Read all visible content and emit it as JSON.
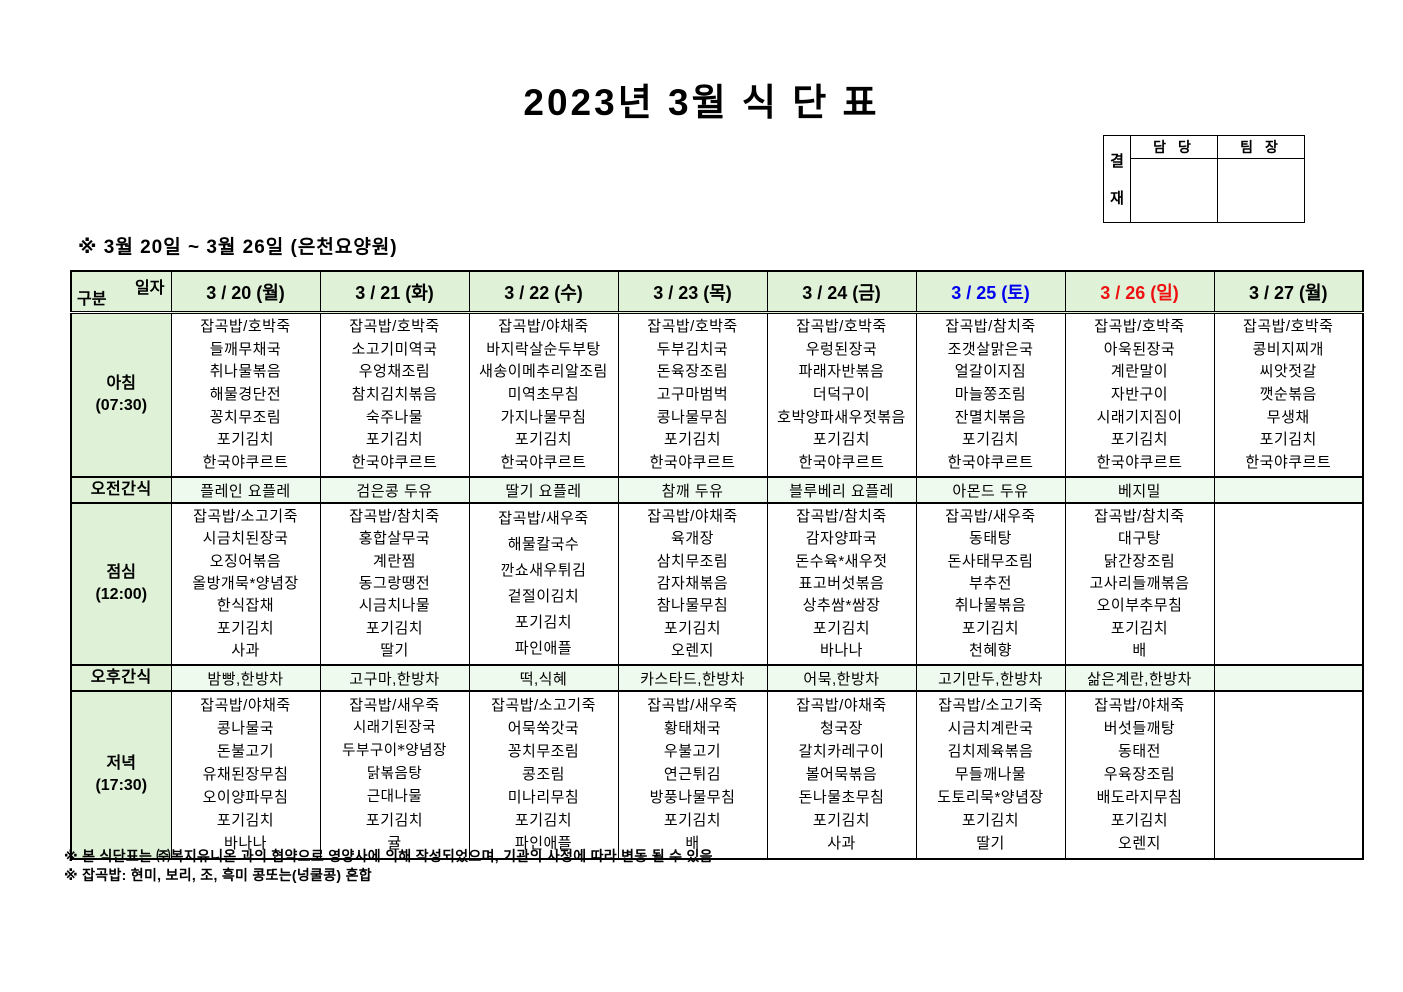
{
  "page": {
    "title": "2023년 3월 식 단 표",
    "period_note": "※  3월 20일  ~  3월 26일  (은천요양원)",
    "footnotes": [
      "※ 본 식단표는 ㈜복지유니온 과의 협약으로 영양사에 의해 작성되었으며, 기관의 사정에 따라 변동 될 수 있음",
      "※ 잡곡밥: 현미, 보리, 조, 흑미 콩또는(넝쿨콩) 혼합"
    ]
  },
  "approval": {
    "title_chars": [
      "결",
      "재"
    ],
    "columns": [
      "담 당",
      "팀 장"
    ]
  },
  "colors": {
    "header_green": "#DFF2D8",
    "snack_green": "#EFFAEF",
    "saturday_blue": "#0000EE",
    "sunday_red": "#EE1111"
  },
  "table": {
    "corner": {
      "top_right": "일자",
      "bottom_left": "구분"
    },
    "row_labels": {
      "breakfast": "아침\n(07:30)",
      "am_snack": "오전간식",
      "lunch": "점심\n(12:00)",
      "pm_snack": "오후간식",
      "dinner": "저녁\n(17:30)"
    },
    "days": [
      {
        "date": "3 / 20 (월)",
        "style": "normal",
        "breakfast": [
          "잡곡밥/호박죽",
          "들깨무채국",
          "취나물볶음",
          "해물경단전",
          "꽁치무조림",
          "포기김치",
          "한국야쿠르트"
        ],
        "am_snack": "플레인 요플레",
        "lunch": [
          "잡곡밥/소고기죽",
          "시금치된장국",
          "오징어볶음",
          "올방개묵*양념장",
          "한식잡채",
          "포기김치",
          "사과"
        ],
        "pm_snack": "밤빵,한방차",
        "dinner": [
          "잡곡밥/야채죽",
          "콩나물국",
          "돈불고기",
          "유채된장무침",
          "오이양파무침",
          "포기김치",
          "바나나"
        ],
        "dinner_alt_font": []
      },
      {
        "date": "3 / 21 (화)",
        "style": "normal",
        "breakfast": [
          "잡곡밥/호박죽",
          "소고기미역국",
          "우엉채조림",
          "참치김치볶음",
          "숙주나물",
          "포기김치",
          "한국야쿠르트"
        ],
        "am_snack": "검은콩 두유",
        "lunch": [
          "잡곡밥/참치죽",
          "홍합살무국",
          "계란찜",
          "동그랑땡전",
          "시금치나물",
          "포기김치",
          "딸기"
        ],
        "pm_snack": "고구마,한방차",
        "dinner": [
          "잡곡밥/새우죽",
          "시래기된장국",
          "두부구이*양념장",
          "닭볶음탕",
          "근대나물",
          "포기김치",
          "귤"
        ],
        "dinner_alt_font": [
          1,
          2,
          3,
          4
        ]
      },
      {
        "date": "3 / 22 (수)",
        "style": "normal",
        "breakfast": [
          "잡곡밥/야채죽",
          "바지락살순두부탕",
          "새송이메추리알조림",
          "미역초무침",
          "가지나물무침",
          "포기김치",
          "한국야쿠르트"
        ],
        "am_snack": "딸기 요플레",
        "lunch": [
          "잡곡밥/새우죽",
          "해물칼국수",
          "깐쇼새우튀김",
          "겉절이김치",
          "포기김치",
          "파인애플"
        ],
        "pm_snack": "떡,식혜",
        "dinner": [
          "잡곡밥/소고기죽",
          "어묵쑥갓국",
          "꽁치무조림",
          "콩조림",
          "미나리무침",
          "포기김치",
          "파인애플"
        ],
        "dinner_alt_font": []
      },
      {
        "date": "3 / 23 (목)",
        "style": "normal",
        "breakfast": [
          "잡곡밥/호박죽",
          "두부김치국",
          "돈육장조림",
          "고구마범벅",
          "콩나물무침",
          "포기김치",
          "한국야쿠르트"
        ],
        "am_snack": "참깨 두유",
        "lunch": [
          "잡곡밥/야채죽",
          "육개장",
          "삼치무조림",
          "감자채볶음",
          "참나물무침",
          "포기김치",
          "오렌지"
        ],
        "pm_snack": "카스타드,한방차",
        "dinner": [
          "잡곡밥/새우죽",
          "황태채국",
          "우불고기",
          "연근튀김",
          "방풍나물무침",
          "포기김치",
          "배"
        ],
        "dinner_alt_font": []
      },
      {
        "date": "3 / 24 (금)",
        "style": "normal",
        "breakfast": [
          "잡곡밥/호박죽",
          "우렁된장국",
          "파래자반볶음",
          "더덕구이",
          "호박양파새우젓볶음",
          "포기김치",
          "한국야쿠르트"
        ],
        "am_snack": "블루베리 요플레",
        "lunch": [
          "잡곡밥/참치죽",
          "감자양파국",
          "돈수육*새우젓",
          "표고버섯볶음",
          "상추쌈*쌈장",
          "포기김치",
          "바나나"
        ],
        "pm_snack": "어묵,한방차",
        "dinner": [
          "잡곡밥/야채죽",
          "청국장",
          "갈치카레구이",
          "볼어묵볶음",
          "돈나물초무침",
          "포기김치",
          "사과"
        ],
        "dinner_alt_font": []
      },
      {
        "date": "3 / 25 (토)",
        "style": "saturday",
        "breakfast": [
          "잡곡밥/참치죽",
          "조갯살맑은국",
          "얼갈이지짐",
          "마늘쫑조림",
          "잔멸치볶음",
          "포기김치",
          "한국야쿠르트"
        ],
        "am_snack": "아몬드 두유",
        "lunch": [
          "잡곡밥/새우죽",
          "동태탕",
          "돈사태무조림",
          "부추전",
          "취나물볶음",
          "포기김치",
          "천혜향"
        ],
        "pm_snack": "고기만두,한방차",
        "dinner": [
          "잡곡밥/소고기죽",
          "시금치계란국",
          "김치제육볶음",
          "무들깨나물",
          "도토리묵*양념장",
          "포기김치",
          "딸기"
        ],
        "dinner_alt_font": []
      },
      {
        "date": "3 / 26 (일)",
        "style": "sunday",
        "breakfast": [
          "잡곡밥/호박죽",
          "아욱된장국",
          "계란말이",
          "자반구이",
          "시래기지짐이",
          "포기김치",
          "한국야쿠르트"
        ],
        "am_snack": "베지밀",
        "lunch": [
          "잡곡밥/참치죽",
          "대구탕",
          "닭간장조림",
          "고사리들깨볶음",
          "오이부추무침",
          "포기김치",
          "배"
        ],
        "pm_snack": "삶은계란,한방차",
        "dinner": [
          "잡곡밥/야채죽",
          "버섯들깨탕",
          "동태전",
          "우육장조림",
          "배도라지무침",
          "포기김치",
          "오렌지"
        ],
        "dinner_alt_font": []
      },
      {
        "date": "3 / 27 (월)",
        "style": "normal",
        "breakfast": [
          "잡곡밥/호박죽",
          "콩비지찌개",
          "씨앗젓갈",
          "깻순볶음",
          "무생채",
          "포기김치",
          "한국야쿠르트"
        ],
        "am_snack": "",
        "lunch": [],
        "pm_snack": "",
        "dinner": [],
        "dinner_alt_font": []
      }
    ]
  }
}
